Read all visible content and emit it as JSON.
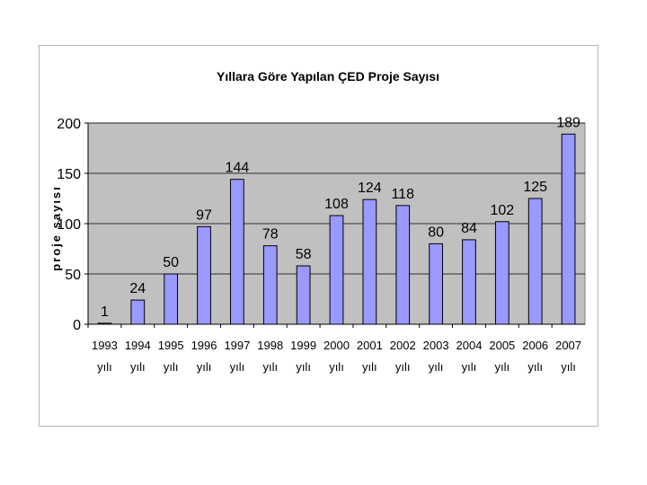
{
  "chart_data": {
    "type": "bar",
    "title": "Yıllara Göre Yapılan ÇED Proje Sayısı",
    "ylabel": "proje sayısı",
    "xlabel": "",
    "ylim": [
      0,
      200
    ],
    "yticks": [
      0,
      50,
      100,
      150,
      200
    ],
    "grid": true,
    "legend": "none",
    "categories": [
      [
        "1993",
        "yılı"
      ],
      [
        "1994",
        "yılı"
      ],
      [
        "1995",
        "yılı"
      ],
      [
        "1996",
        "yılı"
      ],
      [
        "1997",
        "yılı"
      ],
      [
        "1998",
        "yılı"
      ],
      [
        "1999",
        "yılı"
      ],
      [
        "2000",
        "yılı"
      ],
      [
        "2001",
        "yılı"
      ],
      [
        "2002",
        "yılı"
      ],
      [
        "2003",
        "yılı"
      ],
      [
        "2004",
        "yılı"
      ],
      [
        "2005",
        "yılı"
      ],
      [
        "2006",
        "yılı"
      ],
      [
        "2007",
        "yılı"
      ]
    ],
    "values": [
      1,
      24,
      50,
      97,
      144,
      78,
      58,
      108,
      124,
      118,
      80,
      84,
      102,
      125,
      189
    ],
    "colors": {
      "bar": "#9999ff",
      "plot_bg": "#c0c0c0",
      "bar_edge": "#000000"
    }
  }
}
